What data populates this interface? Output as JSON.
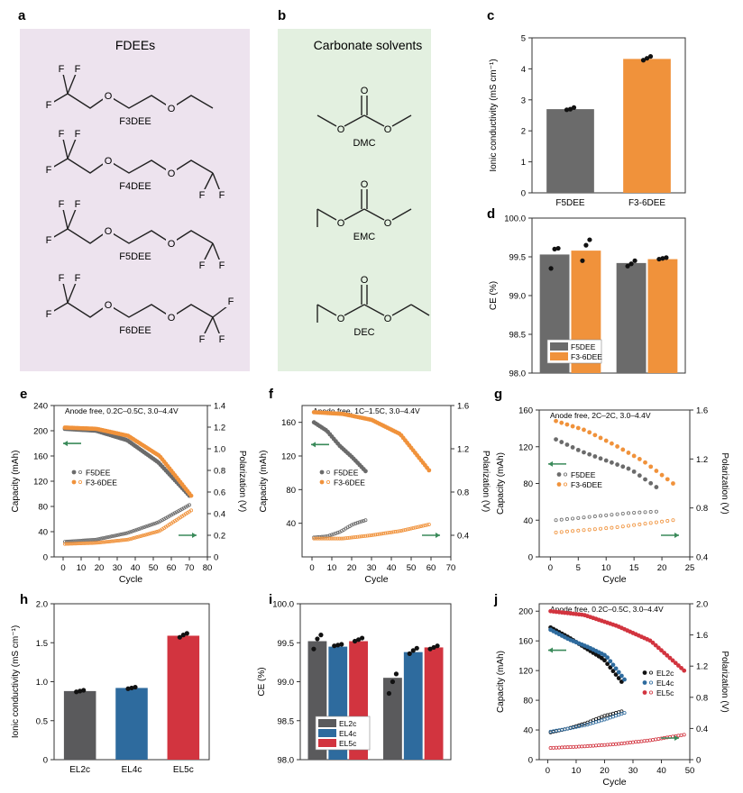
{
  "panels": {
    "a": {
      "label": "a",
      "title": "FDEEs",
      "molecules": [
        "F3DEE",
        "F4DEE",
        "F5DEE",
        "F6DEE"
      ],
      "atoms": {
        "F": "F",
        "O": "O"
      }
    },
    "b": {
      "label": "b",
      "title": "Carbonate solvents",
      "molecules": [
        "DMC",
        "EMC",
        "DEC"
      ]
    }
  },
  "chart_data": [
    {
      "id": "c",
      "label": "c",
      "type": "bar",
      "title": "",
      "xlabel": "",
      "ylabel": "Ionic conductivity (mS cm⁻¹)",
      "ylim": [
        0,
        5
      ],
      "yticks": [
        "0",
        "1",
        "2",
        "3",
        "4",
        "5"
      ],
      "categories": [
        "F5DEE",
        "F3-6DEE"
      ],
      "values": [
        2.7,
        4.32
      ],
      "points": [
        [
          2.68,
          2.7,
          2.75
        ],
        [
          4.28,
          4.34,
          4.4
        ]
      ],
      "colors": [
        "#6b6b6b",
        "#f0923b"
      ]
    },
    {
      "id": "d",
      "label": "d",
      "type": "bar",
      "xlabel": "",
      "ylabel": "CE (%)",
      "ylim": [
        98.0,
        100.0
      ],
      "yticks": [
        "98.0",
        "98.5",
        "99.0",
        "99.5",
        "100.0"
      ],
      "groups": 2,
      "series": [
        {
          "name": "F5DEE",
          "color": "#6b6b6b",
          "values": [
            99.53,
            99.42
          ],
          "points": [
            [
              99.35,
              99.6,
              99.61
            ],
            [
              99.38,
              99.41,
              99.45
            ]
          ]
        },
        {
          "name": "F3-6DEE",
          "color": "#f0923b",
          "values": [
            99.58,
            99.47
          ],
          "points": [
            [
              99.45,
              99.65,
              99.72
            ],
            [
              99.47,
              99.48,
              99.49
            ]
          ]
        }
      ],
      "legend": "bottom-left"
    },
    {
      "id": "e",
      "label": "e",
      "type": "scatter",
      "annotation": "Anode free, 0.2C–0.5C, 3.0–4.4V",
      "xlabel": "Cycle",
      "ylabel": "Capacity (mAh)",
      "y2label": "Polarization (V)",
      "xlim": [
        -5,
        80
      ],
      "ylim": [
        0,
        240
      ],
      "y2lim": [
        0,
        1.4
      ],
      "xticks": [
        "0",
        "10",
        "20",
        "30",
        "40",
        "50",
        "60",
        "70",
        "80"
      ],
      "yticks": [
        "0",
        "40",
        "80",
        "120",
        "160",
        "200",
        "240"
      ],
      "y2ticks": [
        "0",
        "0.2",
        "0.4",
        "0.6",
        "0.8",
        "1.0",
        "1.2",
        "1.4"
      ],
      "series": [
        {
          "name": "F5DEE",
          "color": "#6b6b6b",
          "n": 70,
          "cap": [
            203,
            200,
            185,
            150,
            97
          ],
          "pol": [
            0.14,
            0.16,
            0.22,
            0.32,
            0.48
          ]
        },
        {
          "name": "F3-6DEE",
          "color": "#f0923b",
          "n": 71,
          "cap": [
            205,
            203,
            192,
            160,
            97
          ],
          "pol": [
            0.12,
            0.13,
            0.16,
            0.24,
            0.43
          ]
        }
      ],
      "legend": "middle-left"
    },
    {
      "id": "f",
      "label": "f",
      "type": "scatter",
      "annotation": "Anode free, 1C–1.5C, 3.0–4.4V",
      "xlabel": "Cycle",
      "ylabel": "Capacity (mAh)",
      "y2label": "Polarization (V)",
      "xlim": [
        -5,
        70
      ],
      "ylim": [
        0,
        180
      ],
      "y2lim": [
        0.2,
        1.6
      ],
      "xticks": [
        "0",
        "10",
        "20",
        "30",
        "40",
        "50",
        "60",
        "70"
      ],
      "yticks": [
        "40",
        "80",
        "120",
        "160"
      ],
      "y2ticks": [
        "0.4",
        "0.8",
        "1.2",
        "1.6"
      ],
      "series": [
        {
          "name": "F5DEE",
          "color": "#6b6b6b",
          "n": 27,
          "cap": [
            160,
            150,
            132,
            118,
            102
          ],
          "pol": [
            0.38,
            0.39,
            0.43,
            0.5,
            0.54
          ]
        },
        {
          "name": "F3-6DEE",
          "color": "#f0923b",
          "n": 59,
          "cap": [
            172,
            170,
            163,
            146,
            103
          ],
          "pol": [
            0.37,
            0.37,
            0.4,
            0.44,
            0.5
          ]
        }
      ],
      "legend": "middle-left"
    },
    {
      "id": "g",
      "label": "g",
      "type": "scatter",
      "annotation": "Anode free, 2C–2C, 3.0–4.4V",
      "xlabel": "Cycle",
      "ylabel": "Capacity (mAh)",
      "y2label": "Polarization (V)",
      "xlim": [
        -2,
        25
      ],
      "ylim": [
        0,
        160
      ],
      "y2lim": [
        0.4,
        1.6
      ],
      "xticks": [
        "0",
        "5",
        "10",
        "15",
        "20",
        "25"
      ],
      "yticks": [
        "0",
        "40",
        "80",
        "120",
        "160"
      ],
      "y2ticks": [
        "0.4",
        "0.8",
        "1.2",
        "1.6"
      ],
      "series": [
        {
          "name": "F5DEE",
          "color": "#6b6b6b",
          "n": 19,
          "cap": [
            128,
            115,
            105,
            95,
            76
          ],
          "pol": [
            0.7,
            0.72,
            0.74,
            0.76,
            0.77
          ]
        },
        {
          "name": "F3-6DEE",
          "color": "#f0923b",
          "n": 22,
          "cap": [
            148,
            138,
            122,
            104,
            80
          ],
          "pol": [
            0.6,
            0.62,
            0.64,
            0.67,
            0.7
          ]
        }
      ],
      "legend": "middle-left"
    },
    {
      "id": "h",
      "label": "h",
      "type": "bar",
      "xlabel": "",
      "ylabel": "Ionic conductivity (mS cm⁻¹)",
      "ylim": [
        0,
        2.0
      ],
      "yticks": [
        "0",
        "0.5",
        "1.0",
        "1.5",
        "2.0"
      ],
      "categories": [
        "EL2c",
        "EL4c",
        "EL5c"
      ],
      "values": [
        0.88,
        0.92,
        1.59
      ],
      "points": [
        [
          0.87,
          0.88,
          0.89
        ],
        [
          0.91,
          0.92,
          0.93
        ],
        [
          1.57,
          1.6,
          1.62
        ]
      ],
      "colors": [
        "#5a5a5c",
        "#2e6b9e",
        "#d2343f"
      ]
    },
    {
      "id": "i",
      "label": "i",
      "type": "bar",
      "xlabel": "",
      "ylabel": "CE (%)",
      "ylim": [
        98.0,
        100.0
      ],
      "yticks": [
        "98.0",
        "98.5",
        "99.0",
        "99.5",
        "100.0"
      ],
      "groups": 2,
      "series": [
        {
          "name": "EL2c",
          "color": "#5a5a5c",
          "values": [
            99.52,
            99.05
          ],
          "points": [
            [
              99.42,
              99.55,
              99.6
            ],
            [
              98.85,
              99.0,
              99.1
            ]
          ]
        },
        {
          "name": "EL4c",
          "color": "#2e6b9e",
          "values": [
            99.45,
            99.38
          ],
          "points": [
            [
              99.46,
              99.47,
              99.48
            ],
            [
              99.36,
              99.4,
              99.43
            ]
          ]
        },
        {
          "name": "EL5c",
          "color": "#d2343f",
          "values": [
            99.52,
            99.44
          ],
          "points": [
            [
              99.52,
              99.54,
              99.56
            ],
            [
              99.42,
              99.44,
              99.46
            ]
          ]
        }
      ],
      "legend": "bottom-left"
    },
    {
      "id": "j",
      "label": "j",
      "type": "scatter",
      "annotation": "Anode free, 0.2C–0.5C, 3.0–4.4V",
      "xlabel": "Cycle",
      "ylabel": "Capacity (mAh)",
      "y2label": "Polarization (V)",
      "xlim": [
        -3,
        50
      ],
      "ylim": [
        0,
        210
      ],
      "y2lim": [
        0,
        2.0
      ],
      "xticks": [
        "0",
        "10",
        "20",
        "30",
        "40",
        "50"
      ],
      "yticks": [
        "0",
        "40",
        "80",
        "120",
        "160",
        "200"
      ],
      "y2ticks": [
        "0",
        "0.4",
        "0.8",
        "1.2",
        "1.6",
        "2.0"
      ],
      "series": [
        {
          "name": "EL2c",
          "color": "#111111",
          "n": 26,
          "cap": [
            178,
            165,
            150,
            135,
            105
          ],
          "pol": [
            0.35,
            0.4,
            0.47,
            0.56,
            0.62
          ]
        },
        {
          "name": "EL4c",
          "color": "#2e6b9e",
          "n": 27,
          "cap": [
            175,
            162,
            152,
            140,
            108
          ],
          "pol": [
            0.36,
            0.4,
            0.45,
            0.52,
            0.6
          ]
        },
        {
          "name": "EL5c",
          "color": "#d2343f",
          "n": 48,
          "cap": [
            200,
            195,
            180,
            160,
            120
          ],
          "pol": [
            0.15,
            0.17,
            0.2,
            0.25,
            0.32
          ]
        }
      ],
      "legend": "middle-right"
    }
  ]
}
